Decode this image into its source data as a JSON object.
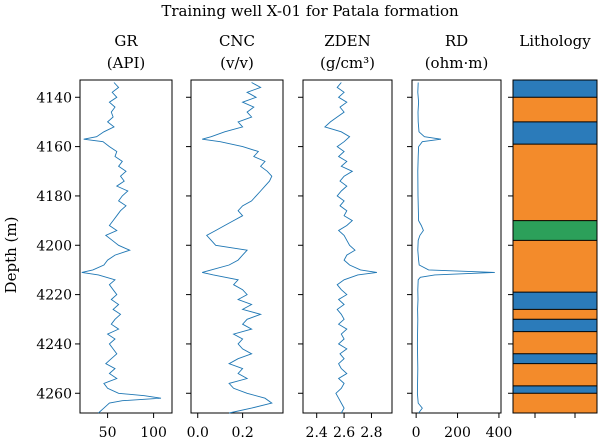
{
  "chart_data": {
    "type": "line",
    "title": "Training well X-01 for Patala formation",
    "ylabel": "Depth (m)",
    "depth_range": [
      4133,
      4268
    ],
    "depth_ticks": [
      4140,
      4160,
      4180,
      4200,
      4220,
      4240,
      4260
    ],
    "tracks": [
      {
        "name_line1": "GR",
        "name_line2": "(API)",
        "xlim": [
          20,
          120
        ],
        "xticks": [
          50,
          100
        ],
        "depth": [
          4134,
          4136,
          4138,
          4140,
          4142,
          4144,
          4146,
          4148,
          4150,
          4152,
          4154,
          4156,
          4157,
          4158,
          4160,
          4162,
          4164,
          4166,
          4168,
          4170,
          4172,
          4174,
          4176,
          4178,
          4180,
          4182,
          4184,
          4186,
          4188,
          4190,
          4192,
          4194,
          4196,
          4198,
          4200,
          4202,
          4204,
          4206,
          4208,
          4210,
          4211,
          4212,
          4214,
          4216,
          4218,
          4220,
          4222,
          4224,
          4226,
          4228,
          4230,
          4232,
          4234,
          4236,
          4238,
          4240,
          4242,
          4244,
          4246,
          4248,
          4250,
          4252,
          4254,
          4256,
          4258,
          4260,
          4261,
          4262,
          4263,
          4264,
          4266,
          4268
        ],
        "values": [
          57,
          62,
          55,
          60,
          52,
          58,
          54,
          56,
          50,
          57,
          46,
          38,
          24,
          45,
          52,
          60,
          58,
          66,
          62,
          70,
          64,
          68,
          60,
          72,
          66,
          62,
          70,
          64,
          60,
          56,
          52,
          60,
          48,
          55,
          62,
          74,
          58,
          50,
          46,
          34,
          22,
          40,
          58,
          52,
          56,
          60,
          54,
          62,
          56,
          64,
          58,
          54,
          62,
          50,
          58,
          52,
          56,
          60,
          54,
          48,
          58,
          52,
          60,
          46,
          50,
          62,
          90,
          108,
          66,
          52,
          46,
          40
        ]
      },
      {
        "name_line1": "CNC",
        "name_line2": "(v/v)",
        "xlim": [
          -0.03,
          0.38
        ],
        "xticks": [
          0.0,
          0.2
        ],
        "depth": [
          4134,
          4136,
          4138,
          4140,
          4142,
          4144,
          4146,
          4148,
          4150,
          4152,
          4154,
          4156,
          4157,
          4158,
          4160,
          4162,
          4164,
          4166,
          4168,
          4170,
          4172,
          4174,
          4176,
          4178,
          4180,
          4182,
          4184,
          4186,
          4188,
          4190,
          4192,
          4194,
          4196,
          4198,
          4200,
          4202,
          4204,
          4206,
          4208,
          4210,
          4211,
          4212,
          4214,
          4216,
          4218,
          4220,
          4222,
          4224,
          4226,
          4228,
          4230,
          4232,
          4234,
          4236,
          4238,
          4240,
          4242,
          4244,
          4246,
          4248,
          4250,
          4252,
          4254,
          4256,
          4258,
          4260,
          4262,
          4264,
          4266,
          4268
        ],
        "values": [
          0.24,
          0.28,
          0.22,
          0.26,
          0.2,
          0.25,
          0.22,
          0.24,
          0.18,
          0.2,
          0.12,
          0.06,
          0.02,
          0.1,
          0.2,
          0.27,
          0.25,
          0.3,
          0.28,
          0.31,
          0.33,
          0.32,
          0.3,
          0.28,
          0.26,
          0.24,
          0.2,
          0.18,
          0.2,
          0.16,
          0.12,
          0.08,
          0.04,
          0.06,
          0.08,
          0.22,
          0.2,
          0.18,
          0.14,
          0.06,
          0.02,
          0.07,
          0.18,
          0.16,
          0.2,
          0.22,
          0.18,
          0.24,
          0.2,
          0.28,
          0.22,
          0.2,
          0.24,
          0.16,
          0.2,
          0.18,
          0.2,
          0.24,
          0.18,
          0.14,
          0.2,
          0.18,
          0.22,
          0.14,
          0.16,
          0.22,
          0.3,
          0.33,
          0.24,
          0.14
        ]
      },
      {
        "name_line1": "ZDEN",
        "name_line2": "(g/cm³)",
        "xlim": [
          2.3,
          2.95
        ],
        "xticks": [
          2.4,
          2.6,
          2.8
        ],
        "depth": [
          4134,
          4136,
          4138,
          4140,
          4142,
          4144,
          4146,
          4148,
          4150,
          4152,
          4154,
          4156,
          4158,
          4160,
          4162,
          4164,
          4166,
          4168,
          4170,
          4172,
          4174,
          4176,
          4178,
          4180,
          4182,
          4184,
          4186,
          4188,
          4190,
          4192,
          4194,
          4196,
          4198,
          4200,
          4202,
          4204,
          4206,
          4208,
          4210,
          4211,
          4212,
          4214,
          4216,
          4218,
          4220,
          4222,
          4224,
          4226,
          4228,
          4230,
          4232,
          4234,
          4236,
          4238,
          4240,
          4242,
          4244,
          4246,
          4248,
          4250,
          4252,
          4254,
          4256,
          4258,
          4260,
          4262,
          4264,
          4266,
          4268
        ],
        "values": [
          2.58,
          2.55,
          2.6,
          2.56,
          2.62,
          2.57,
          2.6,
          2.55,
          2.5,
          2.46,
          2.58,
          2.64,
          2.6,
          2.55,
          2.6,
          2.56,
          2.62,
          2.58,
          2.66,
          2.6,
          2.57,
          2.62,
          2.58,
          2.55,
          2.6,
          2.57,
          2.62,
          2.6,
          2.66,
          2.62,
          2.56,
          2.6,
          2.62,
          2.64,
          2.68,
          2.62,
          2.6,
          2.64,
          2.72,
          2.84,
          2.7,
          2.6,
          2.55,
          2.58,
          2.62,
          2.56,
          2.6,
          2.55,
          2.58,
          2.6,
          2.56,
          2.62,
          2.58,
          2.6,
          2.56,
          2.62,
          2.57,
          2.6,
          2.56,
          2.58,
          2.62,
          2.56,
          2.6,
          2.58,
          2.54,
          2.56,
          2.58,
          2.6,
          2.58
        ]
      },
      {
        "name_line1": "RD",
        "name_line2": "(ohm·m)",
        "xlim": [
          -20,
          410
        ],
        "xticks": [
          0,
          200,
          400
        ],
        "depth": [
          4134,
          4138,
          4142,
          4146,
          4150,
          4154,
          4156,
          4157,
          4158,
          4160,
          4164,
          4170,
          4180,
          4190,
          4192,
          4194,
          4196,
          4198,
          4202,
          4206,
          4208,
          4210,
          4211,
          4212,
          4213,
          4214,
          4218,
          4222,
          4226,
          4230,
          4240,
          4250,
          4260,
          4264,
          4266,
          4268
        ],
        "values": [
          10,
          8,
          12,
          9,
          10,
          14,
          40,
          120,
          30,
          12,
          10,
          8,
          9,
          12,
          25,
          35,
          18,
          10,
          8,
          12,
          15,
          60,
          380,
          90,
          20,
          10,
          8,
          9,
          7,
          8,
          6,
          8,
          6,
          10,
          30,
          12
        ]
      }
    ],
    "lithology": {
      "name": "Lithology",
      "colors": {
        "blue": "#2b7bba",
        "orange": "#f38b2b",
        "green": "#2ca05a"
      },
      "intervals": [
        {
          "top": 4133,
          "base": 4140,
          "color": "blue"
        },
        {
          "top": 4140,
          "base": 4150,
          "color": "orange"
        },
        {
          "top": 4150,
          "base": 4159,
          "color": "blue"
        },
        {
          "top": 4159,
          "base": 4190,
          "color": "orange"
        },
        {
          "top": 4190,
          "base": 4198,
          "color": "green"
        },
        {
          "top": 4198,
          "base": 4219,
          "color": "orange"
        },
        {
          "top": 4219,
          "base": 4226,
          "color": "blue"
        },
        {
          "top": 4226,
          "base": 4230,
          "color": "orange"
        },
        {
          "top": 4230,
          "base": 4235,
          "color": "blue"
        },
        {
          "top": 4235,
          "base": 4244,
          "color": "orange"
        },
        {
          "top": 4244,
          "base": 4248,
          "color": "blue"
        },
        {
          "top": 4248,
          "base": 4257,
          "color": "orange"
        },
        {
          "top": 4257,
          "base": 4260,
          "color": "blue"
        },
        {
          "top": 4260,
          "base": 4268,
          "color": "orange"
        }
      ]
    }
  }
}
